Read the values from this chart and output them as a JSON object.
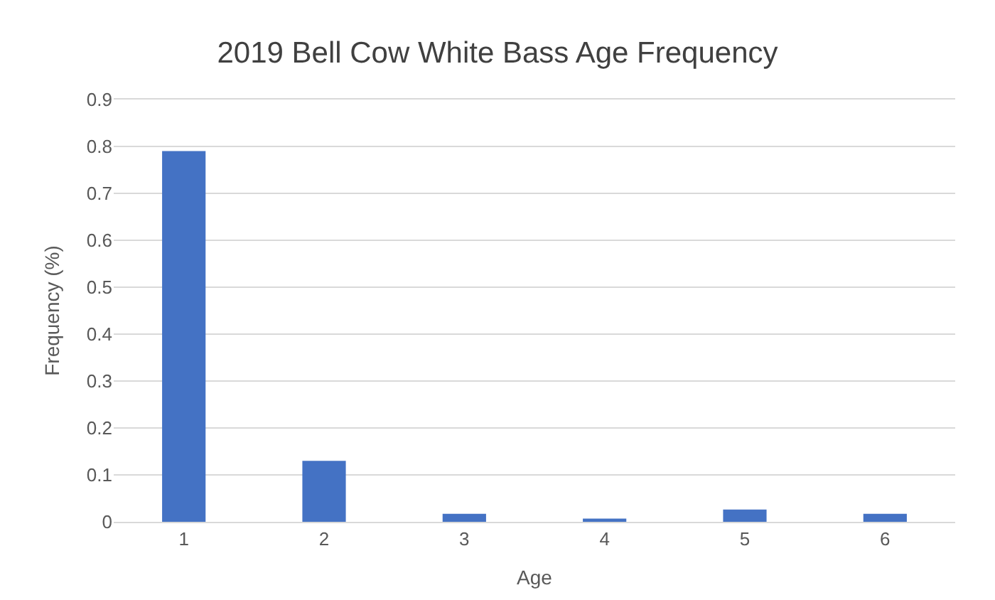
{
  "chart_data": {
    "type": "bar",
    "title": "2019 Bell Cow White Bass Age Frequency",
    "xlabel": "Age",
    "ylabel": "Frequency (%)",
    "categories": [
      "1",
      "2",
      "3",
      "4",
      "5",
      "6"
    ],
    "values": [
      0.79,
      0.13,
      0.017,
      0.007,
      0.026,
      0.017
    ],
    "color": "#4472c4",
    "ylim": [
      0,
      0.9
    ],
    "yticks": [
      {
        "value": 0,
        "label": "0"
      },
      0.1,
      0.2,
      0.3,
      0.4,
      0.5,
      0.6,
      0.7,
      0.8,
      0.9
    ],
    "grid": "y"
  }
}
